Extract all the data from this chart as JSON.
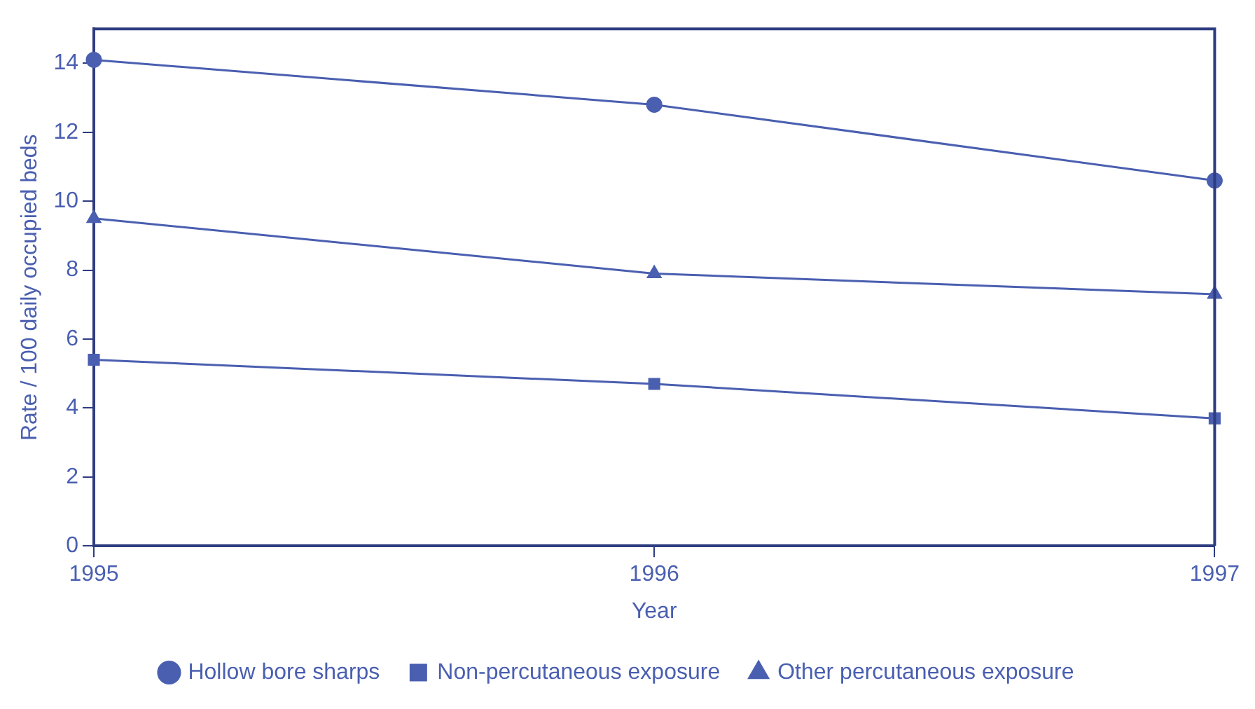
{
  "chart_data": {
    "type": "line",
    "xlabel": "Year",
    "ylabel": "Rate / 100 daily occupied beds",
    "x": [
      1995,
      1996,
      1997
    ],
    "xlim": [
      1995,
      1997
    ],
    "xticks": [
      1995,
      1996,
      1997
    ],
    "ylim": [
      0,
      15
    ],
    "yticks": [
      0,
      2,
      4,
      6,
      8,
      10,
      12,
      14
    ],
    "grid": false,
    "legend": "bottom",
    "series": [
      {
        "name": "Hollow bore sharps",
        "color": "#4a5fb0",
        "marker": "circle",
        "values": [
          14.1,
          12.8,
          10.6
        ]
      },
      {
        "name": "Non-percutaneous exposure",
        "color": "#4a5fb0",
        "marker": "square",
        "values": [
          5.4,
          4.7,
          3.7
        ]
      },
      {
        "name": "Other percutaneous exposure",
        "color": "#4a5fb0",
        "marker": "triangle",
        "values": [
          9.5,
          7.9,
          7.3
        ]
      }
    ]
  }
}
